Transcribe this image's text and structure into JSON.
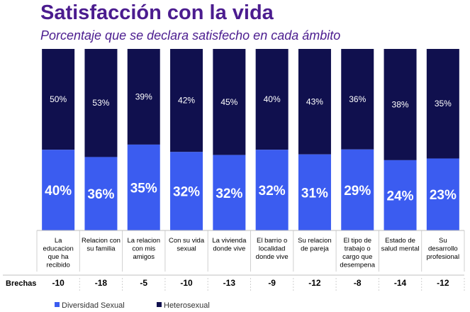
{
  "chart_data": {
    "type": "bar",
    "stacked": true,
    "percent_stacked": true,
    "title": "Satisfacción con la vida",
    "subtitle": "Porcentaje que se declara satisfecho en cada ámbito",
    "categories": [
      "La educacion que ha recibido",
      "Relacion con su familia",
      "La relacion con mis amigos",
      "Con su vida sexual",
      "La vivienda donde vive",
      "El barrio o localidad donde vive",
      "Su relacion de pareja",
      "El tipo de trabajo o cargo que desempena",
      "Estado de salud mental",
      "Su desarrollo profesional"
    ],
    "category_lines": [
      [
        "La",
        "educacion",
        "que ha",
        "recibido"
      ],
      [
        "Relacion con",
        "su familia"
      ],
      [
        "La relacion",
        "con mis",
        "amigos"
      ],
      [
        "Con su vida",
        "sexual"
      ],
      [
        "La vivienda",
        "donde vive"
      ],
      [
        "El barrio o",
        "localidad",
        "donde vive"
      ],
      [
        "Su relacion",
        "de pareja"
      ],
      [
        "El tipo de",
        "trabajo o",
        "cargo que",
        "desempena"
      ],
      [
        "Estado de",
        "salud mental"
      ],
      [
        "Su",
        "desarrollo",
        "profesional"
      ]
    ],
    "series": [
      {
        "name": "Diversidad Sexual",
        "color": "#3b5cf0",
        "values": [
          40,
          36,
          35,
          32,
          32,
          32,
          31,
          29,
          24,
          23
        ]
      },
      {
        "name": "Heterosexual",
        "color": "#10104e",
        "values": [
          50,
          53,
          39,
          42,
          45,
          40,
          43,
          36,
          38,
          35
        ]
      }
    ],
    "value_suffix": "%",
    "gaps_label": "Brechas",
    "gaps": [
      -10,
      -18,
      -5,
      -10,
      -13,
      -9,
      -12,
      -8,
      -14,
      -12
    ],
    "legend_position": "bottom-left",
    "grid": false
  }
}
